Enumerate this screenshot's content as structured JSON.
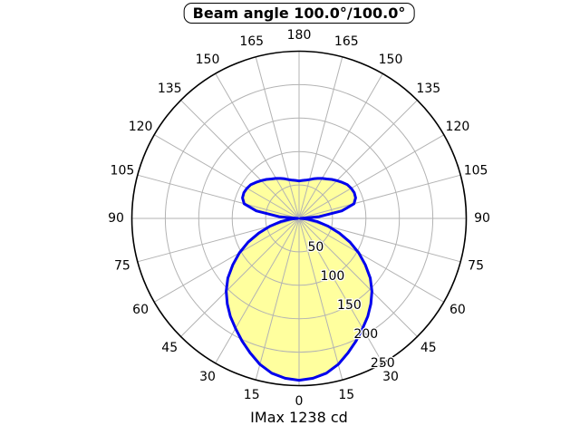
{
  "title": {
    "text": "Beam angle 100.0°/100.0°"
  },
  "caption": {
    "text": "IMax 1238 cd"
  },
  "chart_data": {
    "type": "polar",
    "title": "Beam angle 100.0°/100.0°",
    "annotation": "IMax 1238 cd",
    "imax_cd": 1238,
    "beam_angle_c0_deg": 100.0,
    "beam_angle_c90_deg": 100.0,
    "orientation": "0-degrees-down",
    "symmetric": true,
    "grid": true,
    "angle_ticks_deg": [
      0,
      15,
      30,
      45,
      60,
      75,
      90,
      105,
      120,
      135,
      150,
      165,
      180
    ],
    "r_ticks": [
      50,
      100,
      150,
      200,
      250
    ],
    "r_max": 250,
    "r_label_ray_deg": 30,
    "curve": {
      "angles_deg": [
        0,
        5,
        10,
        15,
        20,
        25,
        30,
        35,
        40,
        45,
        50,
        55,
        60,
        65,
        70,
        75,
        80,
        85,
        90,
        95,
        100,
        105,
        110,
        115,
        120,
        125,
        130,
        135,
        140,
        145,
        150,
        155,
        160,
        165,
        170,
        175,
        180
      ],
      "values": [
        242,
        240,
        235,
        226,
        214,
        202,
        190,
        179,
        167,
        154,
        139,
        121,
        103,
        84,
        64,
        45,
        28,
        13,
        2,
        30,
        65,
        85,
        90,
        91,
        90,
        88,
        84,
        80,
        76,
        72,
        69,
        66,
        63,
        60,
        58,
        57,
        56
      ]
    },
    "colors": {
      "curve": "#0000ee",
      "fill": "#ffff9e",
      "grid": "#b3b3b3",
      "frame": "#000000",
      "text": "#000000"
    }
  }
}
